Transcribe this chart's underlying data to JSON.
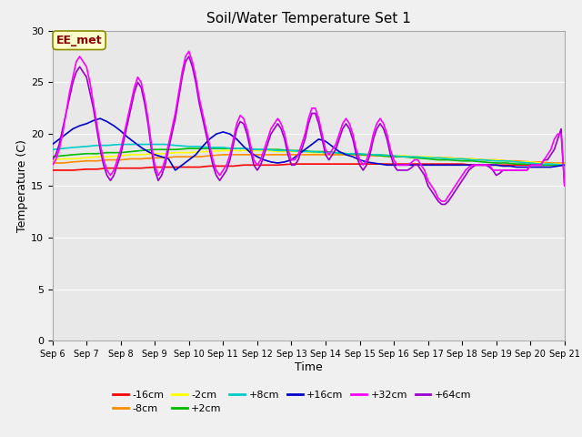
{
  "title": "Soil/Water Temperature Set 1",
  "xlabel": "Time",
  "ylabel": "Temperature (C)",
  "ylim": [
    0,
    30
  ],
  "xlim": [
    0,
    15
  ],
  "fig_bg_color": "#f0f0f0",
  "plot_bg_color": "#e8e8e8",
  "annotation_text": "EE_met",
  "annotation_color": "#8B0000",
  "annotation_bg": "#ffffcc",
  "annotation_edge": "#8B8B00",
  "x_tick_labels": [
    "Sep 6",
    "Sep 7",
    "Sep 8",
    "Sep 9",
    "Sep 10",
    "Sep 11",
    "Sep 12",
    "Sep 13",
    "Sep 14",
    "Sep 15",
    "Sep 16",
    "Sep 17",
    "Sep 18",
    "Sep 19",
    "Sep 20",
    "Sep 21"
  ],
  "legend": [
    {
      "label": "-16cm",
      "color": "#ff0000"
    },
    {
      "label": "-8cm",
      "color": "#ff8c00"
    },
    {
      "label": "-2cm",
      "color": "#ffff00"
    },
    {
      "label": "+2cm",
      "color": "#00bb00"
    },
    {
      "label": "+8cm",
      "color": "#00cccc"
    },
    {
      "label": "+16cm",
      "color": "#0000cc"
    },
    {
      "label": "+32cm",
      "color": "#ff00ff"
    },
    {
      "label": "+64cm",
      "color": "#9900cc"
    }
  ],
  "series": {
    "-16cm": {
      "color": "#ff0000",
      "x": [
        0,
        0.3,
        0.6,
        1,
        1.3,
        1.6,
        2,
        2.3,
        2.6,
        3,
        3.3,
        3.6,
        4,
        4.3,
        4.6,
        5,
        5.3,
        5.6,
        6,
        6.3,
        6.6,
        7,
        7.3,
        7.6,
        8,
        8.3,
        8.6,
        9,
        9.3,
        9.6,
        10,
        10.3,
        10.6,
        11,
        11.3,
        11.6,
        12,
        12.3,
        12.6,
        13,
        13.3,
        13.6,
        14,
        14.3,
        14.6,
        15
      ],
      "y": [
        16.5,
        16.5,
        16.5,
        16.6,
        16.6,
        16.7,
        16.7,
        16.7,
        16.7,
        16.8,
        16.8,
        16.8,
        16.8,
        16.8,
        16.9,
        16.9,
        16.9,
        17.0,
        17.0,
        17.0,
        17.0,
        17.1,
        17.1,
        17.1,
        17.1,
        17.1,
        17.1,
        17.1,
        17.1,
        17.1,
        17.1,
        17.1,
        17.1,
        17.1,
        17.1,
        17.1,
        17.1,
        17.0,
        17.0,
        17.0,
        17.0,
        17.0,
        17.0,
        17.0,
        17.0,
        17.0
      ]
    },
    "-8cm": {
      "color": "#ff8c00",
      "x": [
        0,
        0.3,
        0.6,
        1,
        1.3,
        1.6,
        2,
        2.3,
        2.6,
        3,
        3.3,
        3.6,
        4,
        4.3,
        4.6,
        5,
        5.3,
        5.6,
        6,
        6.3,
        6.6,
        7,
        7.3,
        7.6,
        8,
        8.3,
        8.6,
        9,
        9.3,
        9.6,
        10,
        10.3,
        10.6,
        11,
        11.3,
        11.6,
        12,
        12.3,
        12.6,
        13,
        13.3,
        13.6,
        14,
        14.3,
        14.6,
        15
      ],
      "y": [
        17.2,
        17.2,
        17.3,
        17.4,
        17.4,
        17.5,
        17.5,
        17.6,
        17.6,
        17.7,
        17.7,
        17.8,
        17.8,
        17.8,
        17.9,
        18.0,
        18.0,
        18.0,
        18.0,
        18.0,
        18.0,
        18.0,
        18.0,
        18.0,
        18.0,
        18.0,
        18.0,
        18.0,
        17.9,
        17.9,
        17.8,
        17.8,
        17.8,
        17.7,
        17.7,
        17.7,
        17.6,
        17.6,
        17.5,
        17.5,
        17.4,
        17.4,
        17.3,
        17.3,
        17.2,
        17.2
      ]
    },
    "-2cm": {
      "color": "#ffff00",
      "x": [
        0,
        0.3,
        0.6,
        1,
        1.3,
        1.6,
        2,
        2.3,
        2.6,
        3,
        3.3,
        3.6,
        4,
        4.3,
        4.6,
        5,
        5.3,
        5.6,
        6,
        6.3,
        6.6,
        7,
        7.3,
        7.6,
        8,
        8.3,
        8.6,
        9,
        9.3,
        9.6,
        10,
        10.3,
        10.6,
        11,
        11.3,
        11.6,
        12,
        12.3,
        12.6,
        13,
        13.3,
        13.6,
        14,
        14.3,
        14.6,
        15
      ],
      "y": [
        17.5,
        17.6,
        17.6,
        17.7,
        17.8,
        17.8,
        17.9,
        18.0,
        18.0,
        18.1,
        18.1,
        18.2,
        18.2,
        18.3,
        18.3,
        18.4,
        18.4,
        18.4,
        18.4,
        18.4,
        18.3,
        18.3,
        18.3,
        18.2,
        18.2,
        18.2,
        18.1,
        18.1,
        18.0,
        18.0,
        17.9,
        17.9,
        17.8,
        17.8,
        17.7,
        17.7,
        17.6,
        17.6,
        17.5,
        17.5,
        17.4,
        17.3,
        17.3,
        17.2,
        17.1,
        17.1
      ]
    },
    "+2cm": {
      "color": "#00bb00",
      "x": [
        0,
        0.3,
        0.6,
        1,
        1.3,
        1.6,
        2,
        2.3,
        2.6,
        3,
        3.3,
        3.6,
        4,
        4.3,
        4.6,
        5,
        5.3,
        5.6,
        6,
        6.3,
        6.6,
        7,
        7.3,
        7.6,
        8,
        8.3,
        8.6,
        9,
        9.3,
        9.6,
        10,
        10.3,
        10.6,
        11,
        11.3,
        11.6,
        12,
        12.3,
        12.6,
        13,
        13.3,
        13.6,
        14,
        14.3,
        14.6,
        15
      ],
      "y": [
        17.8,
        17.9,
        18.0,
        18.1,
        18.1,
        18.2,
        18.2,
        18.3,
        18.4,
        18.5,
        18.5,
        18.5,
        18.6,
        18.6,
        18.6,
        18.6,
        18.6,
        18.6,
        18.5,
        18.5,
        18.5,
        18.4,
        18.4,
        18.3,
        18.3,
        18.2,
        18.1,
        18.0,
        18.0,
        17.9,
        17.8,
        17.8,
        17.7,
        17.6,
        17.5,
        17.5,
        17.4,
        17.4,
        17.3,
        17.2,
        17.2,
        17.1,
        17.1,
        17.0,
        17.0,
        17.0
      ]
    },
    "+8cm": {
      "color": "#00cccc",
      "x": [
        0,
        0.3,
        0.6,
        1,
        1.3,
        1.6,
        2,
        2.3,
        2.6,
        3,
        3.3,
        3.6,
        4,
        4.3,
        4.6,
        5,
        5.3,
        5.6,
        6,
        6.3,
        6.6,
        7,
        7.3,
        7.6,
        8,
        8.3,
        8.6,
        9,
        9.3,
        9.6,
        10,
        10.3,
        10.6,
        11,
        11.3,
        11.6,
        12,
        12.3,
        12.6,
        13,
        13.3,
        13.6,
        14,
        14.3,
        14.6,
        15
      ],
      "y": [
        18.5,
        18.6,
        18.7,
        18.8,
        18.9,
        18.9,
        19.0,
        19.0,
        19.0,
        19.0,
        19.0,
        18.9,
        18.8,
        18.8,
        18.7,
        18.7,
        18.6,
        18.6,
        18.5,
        18.5,
        18.4,
        18.4,
        18.3,
        18.3,
        18.2,
        18.2,
        18.1,
        18.1,
        18.0,
        18.0,
        17.9,
        17.8,
        17.8,
        17.7,
        17.7,
        17.6,
        17.6,
        17.5,
        17.5,
        17.4,
        17.4,
        17.3,
        17.2,
        17.1,
        17.1,
        17.0
      ]
    },
    "+16cm": {
      "color": "#0000cc",
      "x": [
        0,
        0.2,
        0.4,
        0.6,
        0.8,
        1.0,
        1.2,
        1.4,
        1.6,
        1.8,
        2.0,
        2.2,
        2.4,
        2.6,
        2.8,
        3.0,
        3.2,
        3.4,
        3.6,
        3.8,
        4.0,
        4.2,
        4.4,
        4.6,
        4.8,
        5.0,
        5.2,
        5.4,
        5.6,
        5.8,
        6.0,
        6.2,
        6.4,
        6.6,
        6.8,
        7.0,
        7.2,
        7.4,
        7.6,
        7.8,
        8.0,
        8.2,
        8.4,
        8.6,
        8.8,
        9.0,
        9.2,
        9.4,
        9.6,
        9.8,
        10.0,
        10.2,
        10.4,
        10.6,
        10.8,
        11.0,
        11.2,
        11.4,
        11.6,
        11.8,
        12.0,
        12.2,
        12.4,
        12.6,
        12.8,
        13.0,
        13.2,
        13.4,
        13.6,
        13.8,
        14.0,
        14.2,
        14.4,
        14.6,
        14.8,
        15.0
      ],
      "y": [
        19.0,
        19.5,
        20.0,
        20.5,
        20.8,
        21.0,
        21.3,
        21.5,
        21.2,
        20.8,
        20.3,
        19.7,
        19.2,
        18.7,
        18.3,
        18.0,
        17.8,
        17.6,
        16.5,
        17.0,
        17.5,
        18.0,
        18.8,
        19.5,
        20.0,
        20.2,
        20.0,
        19.5,
        18.8,
        18.2,
        17.8,
        17.5,
        17.3,
        17.2,
        17.3,
        17.5,
        18.0,
        18.5,
        19.0,
        19.5,
        19.3,
        18.8,
        18.3,
        18.0,
        17.8,
        17.5,
        17.3,
        17.2,
        17.1,
        17.0,
        17.0,
        17.0,
        17.0,
        17.0,
        17.0,
        17.0,
        17.0,
        17.0,
        17.0,
        17.0,
        17.0,
        17.0,
        17.0,
        17.0,
        17.0,
        17.0,
        16.9,
        16.9,
        16.8,
        16.8,
        16.8,
        16.8,
        16.8,
        16.8,
        16.9,
        17.0
      ]
    },
    "+32cm": {
      "color": "#ff00ff",
      "x": [
        0,
        0.1,
        0.2,
        0.3,
        0.4,
        0.5,
        0.6,
        0.7,
        0.8,
        0.9,
        1.0,
        1.1,
        1.2,
        1.3,
        1.4,
        1.5,
        1.6,
        1.7,
        1.8,
        1.9,
        2.0,
        2.1,
        2.2,
        2.3,
        2.4,
        2.5,
        2.6,
        2.7,
        2.8,
        2.9,
        3.0,
        3.1,
        3.2,
        3.3,
        3.4,
        3.5,
        3.6,
        3.7,
        3.8,
        3.9,
        4.0,
        4.1,
        4.2,
        4.3,
        4.4,
        4.5,
        4.6,
        4.7,
        4.8,
        4.9,
        5.0,
        5.1,
        5.2,
        5.3,
        5.4,
        5.5,
        5.6,
        5.7,
        5.8,
        5.9,
        6.0,
        6.1,
        6.2,
        6.3,
        6.4,
        6.5,
        6.6,
        6.7,
        6.8,
        6.9,
        7.0,
        7.1,
        7.2,
        7.3,
        7.4,
        7.5,
        7.6,
        7.7,
        7.8,
        7.9,
        8.0,
        8.1,
        8.2,
        8.3,
        8.4,
        8.5,
        8.6,
        8.7,
        8.8,
        8.9,
        9.0,
        9.1,
        9.2,
        9.3,
        9.4,
        9.5,
        9.6,
        9.7,
        9.8,
        9.9,
        10.0,
        10.1,
        10.2,
        10.3,
        10.4,
        10.5,
        10.6,
        10.7,
        10.8,
        10.9,
        11.0,
        11.1,
        11.2,
        11.3,
        11.4,
        11.5,
        11.6,
        11.7,
        11.8,
        11.9,
        12.0,
        12.1,
        12.2,
        12.3,
        12.4,
        12.5,
        12.6,
        12.7,
        12.8,
        12.9,
        13.0,
        13.1,
        13.2,
        13.3,
        13.4,
        13.5,
        13.6,
        13.7,
        13.8,
        13.9,
        14.0,
        14.1,
        14.2,
        14.3,
        14.4,
        14.5,
        14.6,
        14.7,
        14.8,
        14.9,
        15.0
      ],
      "y": [
        17.0,
        17.5,
        18.5,
        20.0,
        22.0,
        24.0,
        25.5,
        27.0,
        27.5,
        27.0,
        26.5,
        25.0,
        23.0,
        21.0,
        19.0,
        17.5,
        16.5,
        16.0,
        16.5,
        17.5,
        18.5,
        20.0,
        21.5,
        23.0,
        24.5,
        25.5,
        25.0,
        23.5,
        21.5,
        19.0,
        17.0,
        16.0,
        16.5,
        17.5,
        19.0,
        20.5,
        22.0,
        24.0,
        26.0,
        27.5,
        28.0,
        27.0,
        25.5,
        23.5,
        22.0,
        20.5,
        19.0,
        17.5,
        16.5,
        16.0,
        16.5,
        17.0,
        18.0,
        19.5,
        21.0,
        21.8,
        21.5,
        20.5,
        19.0,
        17.5,
        17.0,
        17.5,
        18.5,
        19.5,
        20.5,
        21.0,
        21.5,
        21.0,
        20.0,
        18.5,
        17.5,
        17.5,
        18.0,
        19.0,
        20.0,
        21.5,
        22.5,
        22.5,
        21.5,
        20.0,
        18.5,
        18.0,
        18.5,
        19.0,
        20.0,
        21.0,
        21.5,
        21.0,
        20.0,
        18.5,
        17.5,
        17.0,
        17.5,
        18.5,
        20.0,
        21.0,
        21.5,
        21.0,
        20.0,
        18.5,
        17.5,
        17.0,
        17.0,
        17.0,
        17.0,
        17.2,
        17.5,
        17.5,
        17.0,
        16.5,
        15.5,
        15.0,
        14.5,
        13.8,
        13.5,
        13.5,
        14.0,
        14.5,
        15.0,
        15.5,
        16.0,
        16.5,
        16.8,
        17.0,
        17.0,
        17.0,
        17.0,
        17.0,
        17.0,
        16.5,
        16.5,
        16.5,
        16.5,
        16.5,
        16.5,
        16.5,
        16.5,
        16.5,
        16.5,
        16.5,
        17.0,
        17.0,
        17.0,
        17.0,
        17.5,
        18.0,
        18.5,
        19.5,
        20.0,
        20.0,
        15.0
      ]
    },
    "+64cm": {
      "color": "#9900cc",
      "x": [
        0,
        0.1,
        0.2,
        0.3,
        0.4,
        0.5,
        0.6,
        0.7,
        0.8,
        0.9,
        1.0,
        1.1,
        1.2,
        1.3,
        1.4,
        1.5,
        1.6,
        1.7,
        1.8,
        1.9,
        2.0,
        2.1,
        2.2,
        2.3,
        2.4,
        2.5,
        2.6,
        2.7,
        2.8,
        2.9,
        3.0,
        3.1,
        3.2,
        3.3,
        3.4,
        3.5,
        3.6,
        3.7,
        3.8,
        3.9,
        4.0,
        4.1,
        4.2,
        4.3,
        4.4,
        4.5,
        4.6,
        4.7,
        4.8,
        4.9,
        5.0,
        5.1,
        5.2,
        5.3,
        5.4,
        5.5,
        5.6,
        5.7,
        5.8,
        5.9,
        6.0,
        6.1,
        6.2,
        6.3,
        6.4,
        6.5,
        6.6,
        6.7,
        6.8,
        6.9,
        7.0,
        7.1,
        7.2,
        7.3,
        7.4,
        7.5,
        7.6,
        7.7,
        7.8,
        7.9,
        8.0,
        8.1,
        8.2,
        8.3,
        8.4,
        8.5,
        8.6,
        8.7,
        8.8,
        8.9,
        9.0,
        9.1,
        9.2,
        9.3,
        9.4,
        9.5,
        9.6,
        9.7,
        9.8,
        9.9,
        10.0,
        10.1,
        10.2,
        10.3,
        10.4,
        10.5,
        10.6,
        10.7,
        10.8,
        10.9,
        11.0,
        11.1,
        11.2,
        11.3,
        11.4,
        11.5,
        11.6,
        11.7,
        11.8,
        11.9,
        12.0,
        12.1,
        12.2,
        12.3,
        12.4,
        12.5,
        12.6,
        12.7,
        12.8,
        12.9,
        13.0,
        13.1,
        13.2,
        13.3,
        13.4,
        13.5,
        13.6,
        13.7,
        13.8,
        13.9,
        14.0,
        14.1,
        14.2,
        14.3,
        14.4,
        14.5,
        14.6,
        14.7,
        14.8,
        14.9,
        15.0
      ],
      "y": [
        17.5,
        18.0,
        19.0,
        20.5,
        22.0,
        23.5,
        25.0,
        26.0,
        26.5,
        26.0,
        25.5,
        24.0,
        22.5,
        20.5,
        18.5,
        17.0,
        16.0,
        15.5,
        16.0,
        17.0,
        18.0,
        19.5,
        21.0,
        22.5,
        24.0,
        25.0,
        24.5,
        23.0,
        21.0,
        18.5,
        16.5,
        15.5,
        16.0,
        17.0,
        18.5,
        20.0,
        21.5,
        23.5,
        25.5,
        27.0,
        27.5,
        26.5,
        25.0,
        23.0,
        21.5,
        20.0,
        18.5,
        17.0,
        16.0,
        15.5,
        16.0,
        16.5,
        17.5,
        19.0,
        20.5,
        21.2,
        21.0,
        20.0,
        18.5,
        17.0,
        16.5,
        17.0,
        18.0,
        19.0,
        20.0,
        20.5,
        21.0,
        20.5,
        19.5,
        18.0,
        17.0,
        17.0,
        17.5,
        18.5,
        19.5,
        21.0,
        22.0,
        22.0,
        21.0,
        19.5,
        18.0,
        17.5,
        18.0,
        18.5,
        19.5,
        20.5,
        21.0,
        20.5,
        19.5,
        18.0,
        17.0,
        16.5,
        17.0,
        18.0,
        19.5,
        20.5,
        21.0,
        20.5,
        19.5,
        18.0,
        17.0,
        16.5,
        16.5,
        16.5,
        16.5,
        16.7,
        17.0,
        17.0,
        16.5,
        16.0,
        15.0,
        14.5,
        14.0,
        13.5,
        13.2,
        13.2,
        13.5,
        14.0,
        14.5,
        15.0,
        15.5,
        16.0,
        16.5,
        16.8,
        17.0,
        17.0,
        17.0,
        17.0,
        16.8,
        16.5,
        16.0,
        16.2,
        16.5,
        16.5,
        16.5,
        16.5,
        16.5,
        16.5,
        16.5,
        16.5,
        17.0,
        17.0,
        17.0,
        17.0,
        17.5,
        17.5,
        18.0,
        18.5,
        19.5,
        20.5,
        15.0
      ]
    }
  }
}
